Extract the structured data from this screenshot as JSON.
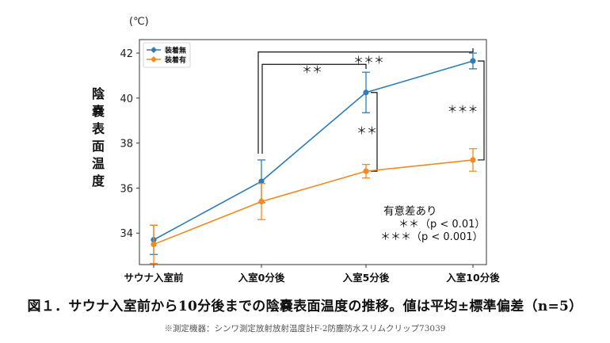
{
  "chart_data": {
    "type": "line",
    "categories": [
      "サウナ入室前",
      "入室0分後",
      "入室5分後",
      "入室10分後"
    ],
    "series": [
      {
        "name": "装着無",
        "color": "#2e7db6",
        "values": [
          33.7,
          36.3,
          40.25,
          41.65
        ],
        "errors": [
          0.65,
          0.95,
          0.9,
          0.35
        ]
      },
      {
        "name": "装着有",
        "color": "#f5891f",
        "values": [
          33.5,
          35.4,
          36.75,
          37.25
        ],
        "errors": [
          0.85,
          0.8,
          0.3,
          0.5
        ]
      }
    ],
    "unit": "(℃)",
    "ylabel": "陰嚢表面温度",
    "ylim": [
      32.6,
      42.6
    ],
    "yticks": [
      34,
      36,
      38,
      40,
      42
    ],
    "significance": {
      "brackets": [
        {
          "label": "＊＊＊",
          "from": "入室0分後",
          "to": "入室10分後",
          "series": "装着無"
        },
        {
          "label": "＊＊",
          "from": "入室0分後",
          "to": "入室5分後",
          "series": "装着無"
        },
        {
          "label": "＊＊",
          "category": "入室5分後",
          "between": [
            "装着無",
            "装着有"
          ]
        },
        {
          "label": "＊＊＊",
          "category": "入室10分後",
          "between": [
            "装着無",
            "装着有"
          ]
        }
      ],
      "legend_title": "有意差あり",
      "legend_lines": [
        {
          "stars": "＊＊",
          "text": "（p < 0.01）"
        },
        {
          "stars": "＊＊＊",
          "text": "（p < 0.001）"
        }
      ]
    }
  },
  "caption": {
    "main": "図１．サウナ入室前から10分後までの陰嚢表面温度の推移。値は平均±標準偏差（n=5）",
    "note": "※測定機器：シンワ測定放射放射温度計F-2防塵防水スリムクリップ73039"
  }
}
